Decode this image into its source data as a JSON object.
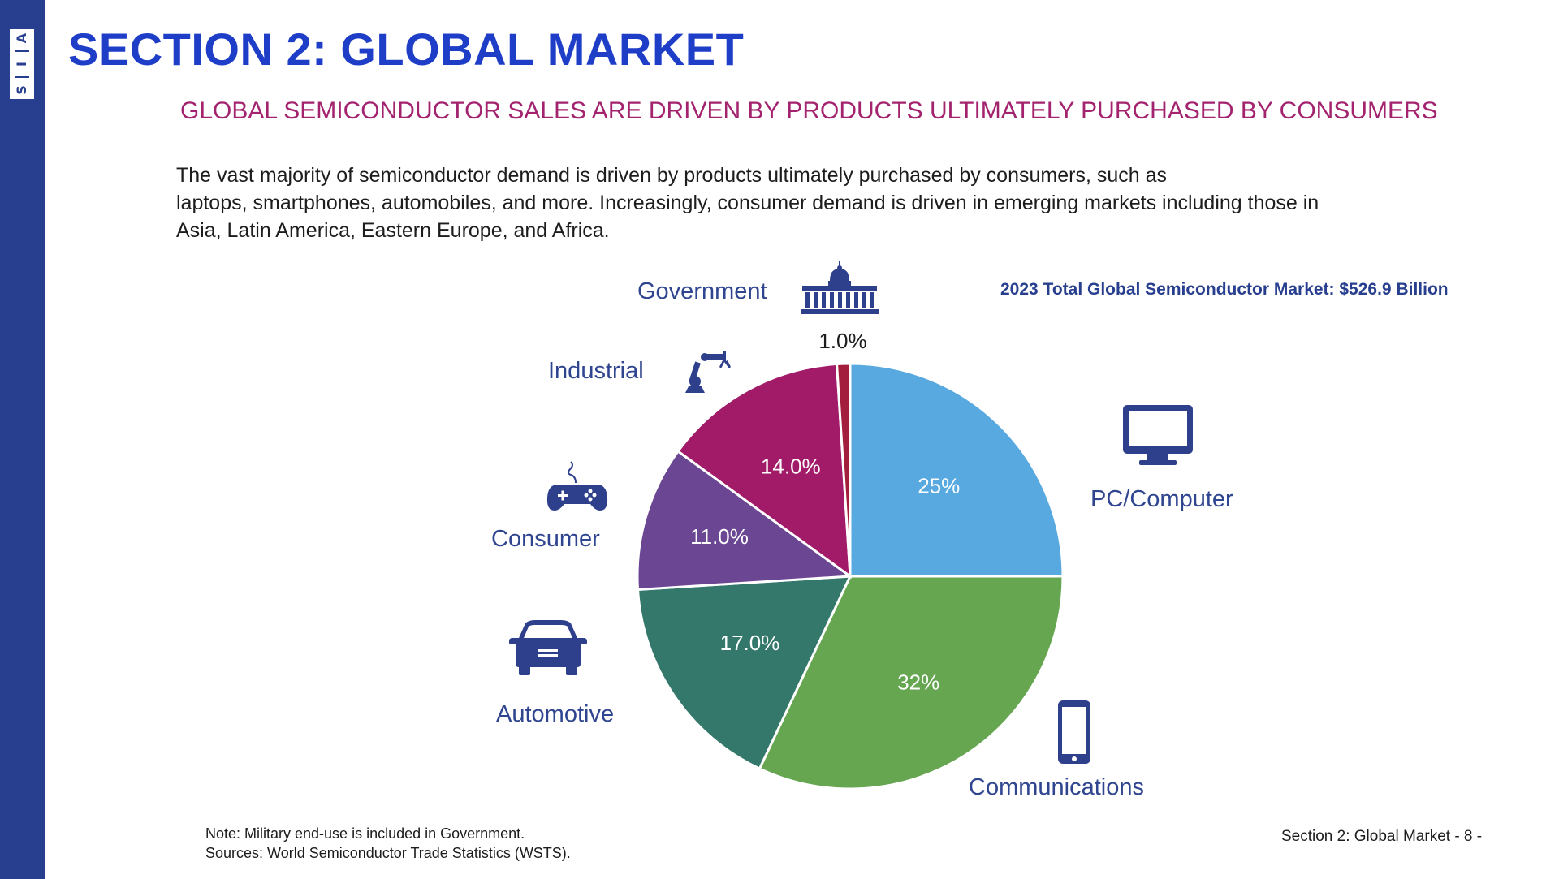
{
  "logo": {
    "letters": [
      "A",
      "I",
      "S"
    ]
  },
  "header": {
    "title": "SECTION 2: GLOBAL MARKET",
    "subtitle": "GLOBAL SEMICONDUCTOR SALES ARE DRIVEN BY PRODUCTS ULTIMATELY PURCHASED BY CONSUMERS"
  },
  "intro": {
    "lines": [
      "The vast majority of semiconductor demand is driven by products ultimately purchased by consumers, such as",
      "laptops, smartphones, automobiles, and more. Increasingly, consumer demand is driven in emerging markets including those in",
      "Asia, Latin America, Eastern Europe, and Africa."
    ]
  },
  "market_total": "2023 Total Global Semiconductor Market: $526.9 Billion",
  "segment_labels": {
    "government": "Government",
    "industrial": "Industrial",
    "consumer": "Consumer",
    "automotive": "Automotive",
    "pc": "PC/Computer",
    "communications": "Communications"
  },
  "icons": {
    "government": "capitol-building-icon",
    "industrial": "robotic-arm-icon",
    "consumer": "gamepad-icon",
    "automotive": "car-icon",
    "pc": "monitor-icon",
    "communications": "smartphone-icon"
  },
  "chart_data": {
    "type": "pie",
    "title": "2023 Total Global Semiconductor Market: $526.9 Billion",
    "start": "12 o'clock, clockwise",
    "slices": [
      {
        "name": "PC/Computer",
        "value": 25,
        "label": "25%",
        "color": "#57a9e0"
      },
      {
        "name": "Communications",
        "value": 32,
        "label": "32%",
        "color": "#66a651"
      },
      {
        "name": "Automotive",
        "value": 17,
        "label": "17.0%",
        "color": "#33786a"
      },
      {
        "name": "Consumer",
        "value": 11,
        "label": "11.0%",
        "color": "#6b4692"
      },
      {
        "name": "Industrial",
        "value": 14,
        "label": "14.0%",
        "color": "#a21b68"
      },
      {
        "name": "Government",
        "value": 1,
        "label": "1.0%",
        "color": "#a31e3c"
      }
    ]
  },
  "notes": {
    "line1": "Note: Military end-use is included in Government.",
    "line2": "Sources: World Semiconductor Trade Statistics (WSTS)."
  },
  "footer": "Section 2: Global Market - 8 -",
  "colors": {
    "sidebar": "#283f8f",
    "title": "#1f3ec8",
    "subtitle": "#a3236e",
    "icon": "#2e3f8c"
  }
}
